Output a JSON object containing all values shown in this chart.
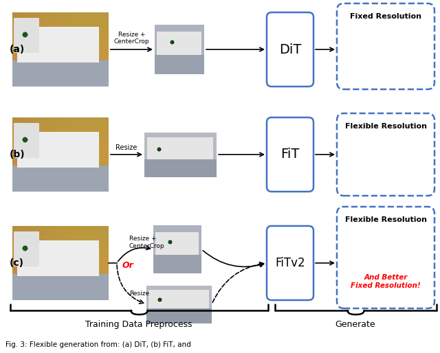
{
  "bg_color": "#ffffff",
  "label_a": "(a)",
  "label_b": "(b)",
  "label_c": "(c)",
  "dit_label": "DiT",
  "fit_label": "FiT",
  "fitv2_label": "FiTv2",
  "fixed_res_label": "Fixed Resolution",
  "flex_res_label": "Flexible Resolution",
  "and_better_label": "And Better\nFixed Resolution!",
  "training_label": "Training Data Preprocess",
  "generate_label": "Generate",
  "resize_centercrop": "Resize +\nCenterCrop",
  "resize": "Resize",
  "or_label": "Or",
  "box_edge_color": "#4472c4",
  "bottom_caption": "Fig. 3: Flexible generation from: (a) DiT, (b) FiT, and"
}
